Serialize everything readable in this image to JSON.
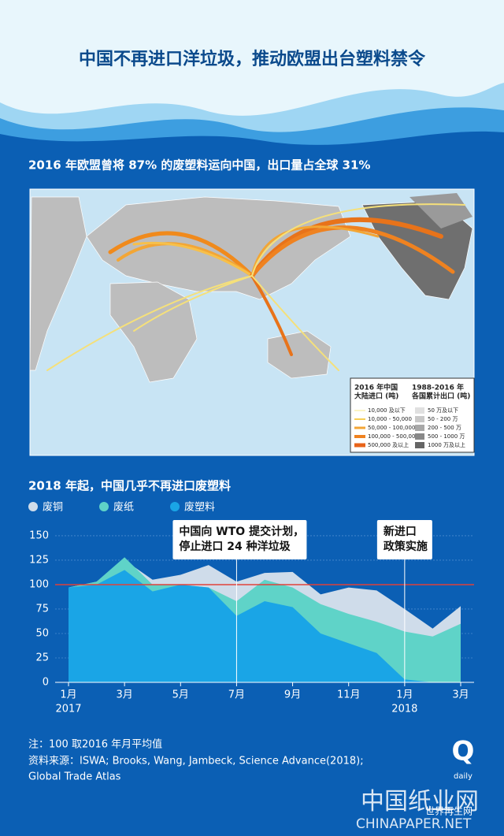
{
  "header": {
    "title": "中国不再进口洋垃圾，推动欧盟出台塑料禁令"
  },
  "map": {
    "subtitle": "2016 年欧盟曾将 87% 的废塑料运向中国，出口量占全球 31%",
    "legend": {
      "left_title": [
        "2016 年中国",
        "大陆进口 (吨)"
      ],
      "right_title": [
        "1988-2016 年",
        "各国累计出口 (吨)"
      ],
      "left_items": [
        "10,000 及以下",
        "10,000 - 50,000",
        "50,000 - 100,000",
        "100,000 - 500,000",
        "500,000 及以上"
      ],
      "right_items": [
        "50 万及以下",
        "50 - 200 万",
        "200 - 500 万",
        "500 - 1000 万",
        "1000 万及以上"
      ]
    }
  },
  "chart_data": {
    "type": "area",
    "title": "2018 年起，中国几乎不再进口废塑料",
    "categories": [
      "1月",
      null,
      "3月",
      null,
      "5月",
      null,
      "7月",
      null,
      "9月",
      null,
      "11月",
      null,
      "1月",
      null,
      "3月"
    ],
    "years": [
      "2017",
      "2018"
    ],
    "series": [
      {
        "name": "废铜",
        "color": "#cfdcea",
        "values": [
          97,
          103,
          125,
          105,
          110,
          120,
          103,
          112,
          113,
          90,
          97,
          94,
          75,
          55,
          78
        ]
      },
      {
        "name": "废纸",
        "color": "#5fd3c8",
        "values": [
          97,
          103,
          128,
          100,
          100,
          97,
          83,
          105,
          97,
          80,
          70,
          62,
          52,
          47,
          60
        ]
      },
      {
        "name": "废塑料",
        "color": "#1aa5e6",
        "values": [
          97,
          100,
          115,
          93,
          100,
          97,
          68,
          83,
          77,
          50,
          40,
          30,
          3,
          0,
          0
        ]
      }
    ],
    "ylim": [
      0,
      158
    ],
    "yticks": [
      0,
      25,
      50,
      75,
      100,
      125,
      150
    ],
    "grid": true,
    "reference_line": 100,
    "annotations": [
      [
        "中国向 WTO 提交计划，",
        "停止进口 24 种洋垃圾"
      ],
      [
        "新进口",
        "政策实施"
      ]
    ]
  },
  "notes": [
    "注：100 取2016 年月平均值",
    "资料来源：ISWA; Brooks, Wang, Jambeck, Science Advance(2018);",
    "Global Trade Atlas"
  ],
  "footer": {
    "logo": "Q",
    "logo_sub": "daily",
    "watermark": "中国纸业网",
    "watermark_url": "CHINAPAPER.NET",
    "watermark2": "世界再生网"
  }
}
